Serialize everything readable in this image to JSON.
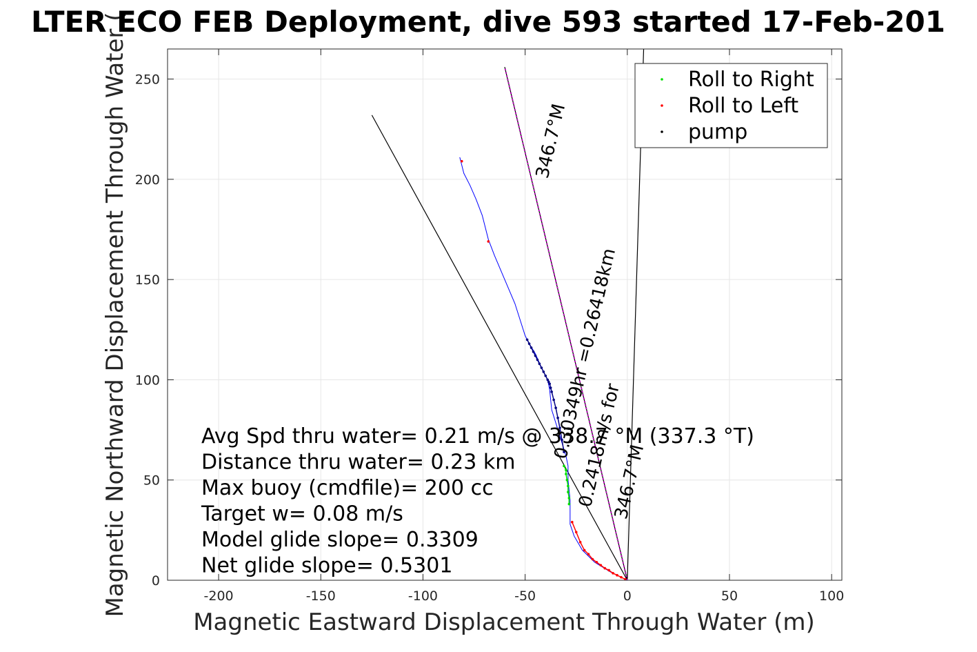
{
  "title": "LTER ECO FEB Deployment, dive 593 started 17-Feb-201",
  "chart_data": {
    "type": "line",
    "title": "LTER ECO FEB Deployment, dive 593 started 17-Feb-201",
    "xlabel": "Magnetic Eastward Displacement Through Water (m)",
    "ylabel": "Magnetic Northward Displacement Through Water (",
    "xlim": [
      -225,
      105
    ],
    "ylim": [
      0,
      265
    ],
    "xticks": [
      -200,
      -150,
      -100,
      -50,
      0,
      50,
      100
    ],
    "yticks": [
      0,
      50,
      100,
      150,
      200,
      250
    ],
    "xtick_labels": [
      "-200",
      "-150",
      "-100",
      "-50",
      "0",
      "50",
      "100"
    ],
    "ytick_labels": [
      "0",
      "50",
      "100",
      "150",
      "200",
      "250"
    ],
    "grid": true,
    "legend_position": "top-right",
    "legend": [
      {
        "label": "Roll to Right",
        "color": "#00e000"
      },
      {
        "label": "Roll to Left",
        "color": "#ff0000"
      },
      {
        "label": "pump",
        "color": "#000000"
      }
    ],
    "series": [
      {
        "color": "#0000ff",
        "x": [
          0,
          -8,
          -16,
          -22,
          -26,
          -28,
          -28,
          -29,
          -29,
          -30,
          -33,
          -37,
          -38,
          -39,
          -42,
          -45,
          -48,
          -50,
          -55,
          -60,
          -65,
          -68,
          -71,
          -74,
          -77,
          -80,
          -81,
          -82
        ],
        "y": [
          0,
          4,
          9,
          15,
          22,
          28,
          40,
          50,
          57,
          62,
          72,
          85,
          95,
          100,
          106,
          113,
          118,
          122,
          138,
          150,
          162,
          170,
          182,
          190,
          197,
          203,
          207,
          211
        ]
      },
      {
        "name": "Roll to Left",
        "color": "#ff0000",
        "x": [
          -1,
          -3,
          -5,
          -7,
          -9,
          -11,
          -13,
          -15,
          -17,
          -19,
          -21,
          -23,
          -25,
          -27
        ],
        "y": [
          0.5,
          1.5,
          2.5,
          3.5,
          5,
          6,
          7.5,
          9,
          10.5,
          13,
          15,
          19,
          24,
          29
        ]
      },
      {
        "name": "Roll to Right",
        "color": "#00e000",
        "x": [
          -28.5,
          -28.5,
          -29,
          -29,
          -29.5,
          -30,
          -30,
          -31
        ],
        "y": [
          38,
          41,
          44,
          47,
          50,
          53,
          55,
          57
        ]
      },
      {
        "name": "pump",
        "color": "#000080",
        "x": [
          -31,
          -32,
          -33,
          -34,
          -35,
          -36,
          -37,
          -37.5,
          -38,
          -38.5,
          -39,
          -40,
          -41,
          -42,
          -43,
          -44,
          -45,
          -46,
          -47,
          -48,
          -49
        ],
        "y": [
          64,
          70,
          76,
          81,
          86,
          90,
          94,
          96,
          98,
          99,
          100,
          102,
          104,
          106,
          108,
          110,
          112,
          114,
          116,
          118,
          120
        ]
      }
    ],
    "lines": [
      {
        "color": "#000000",
        "x": [
          0,
          -125
        ],
        "y": [
          0,
          232
        ]
      },
      {
        "color": "#000000",
        "x": [
          0,
          8
        ],
        "y": [
          0,
          265
        ]
      },
      {
        "color": "#000000",
        "x": [
          0,
          -60
        ],
        "y": [
          0,
          256
        ]
      },
      {
        "color": "#cc00cc",
        "dashed": true,
        "x": [
          0,
          -60
        ],
        "y": [
          0,
          256
        ]
      }
    ],
    "scattered_markers": [
      {
        "color": "#ff0000",
        "x": [
          -68,
          -81
        ],
        "y": [
          169,
          209
        ]
      }
    ],
    "rotated_labels": [
      {
        "text": "0.30349hr =0.26418km",
        "x": -30,
        "y": 60,
        "angle": -76.8
      },
      {
        "text": "346.7°M",
        "x": -39,
        "y": 200,
        "angle": -76.8
      },
      {
        "text": "0.2418m/s for",
        "x": -18,
        "y": 36,
        "angle": -76.8
      },
      {
        "text": "346.7°M",
        "x": -0.5,
        "y": 30,
        "angle": -76.8
      }
    ],
    "annotations": [
      "Avg Spd thru water=  0.21 m/s @ 338.7 °M (337.3 °T)",
      "Distance thru water=  0.23 km",
      "Max buoy (cmdfile)= 200 cc",
      "Target w= 0.08 m/s",
      "Model glide slope= 0.3309",
      "Net glide slope= 0.5301"
    ]
  }
}
